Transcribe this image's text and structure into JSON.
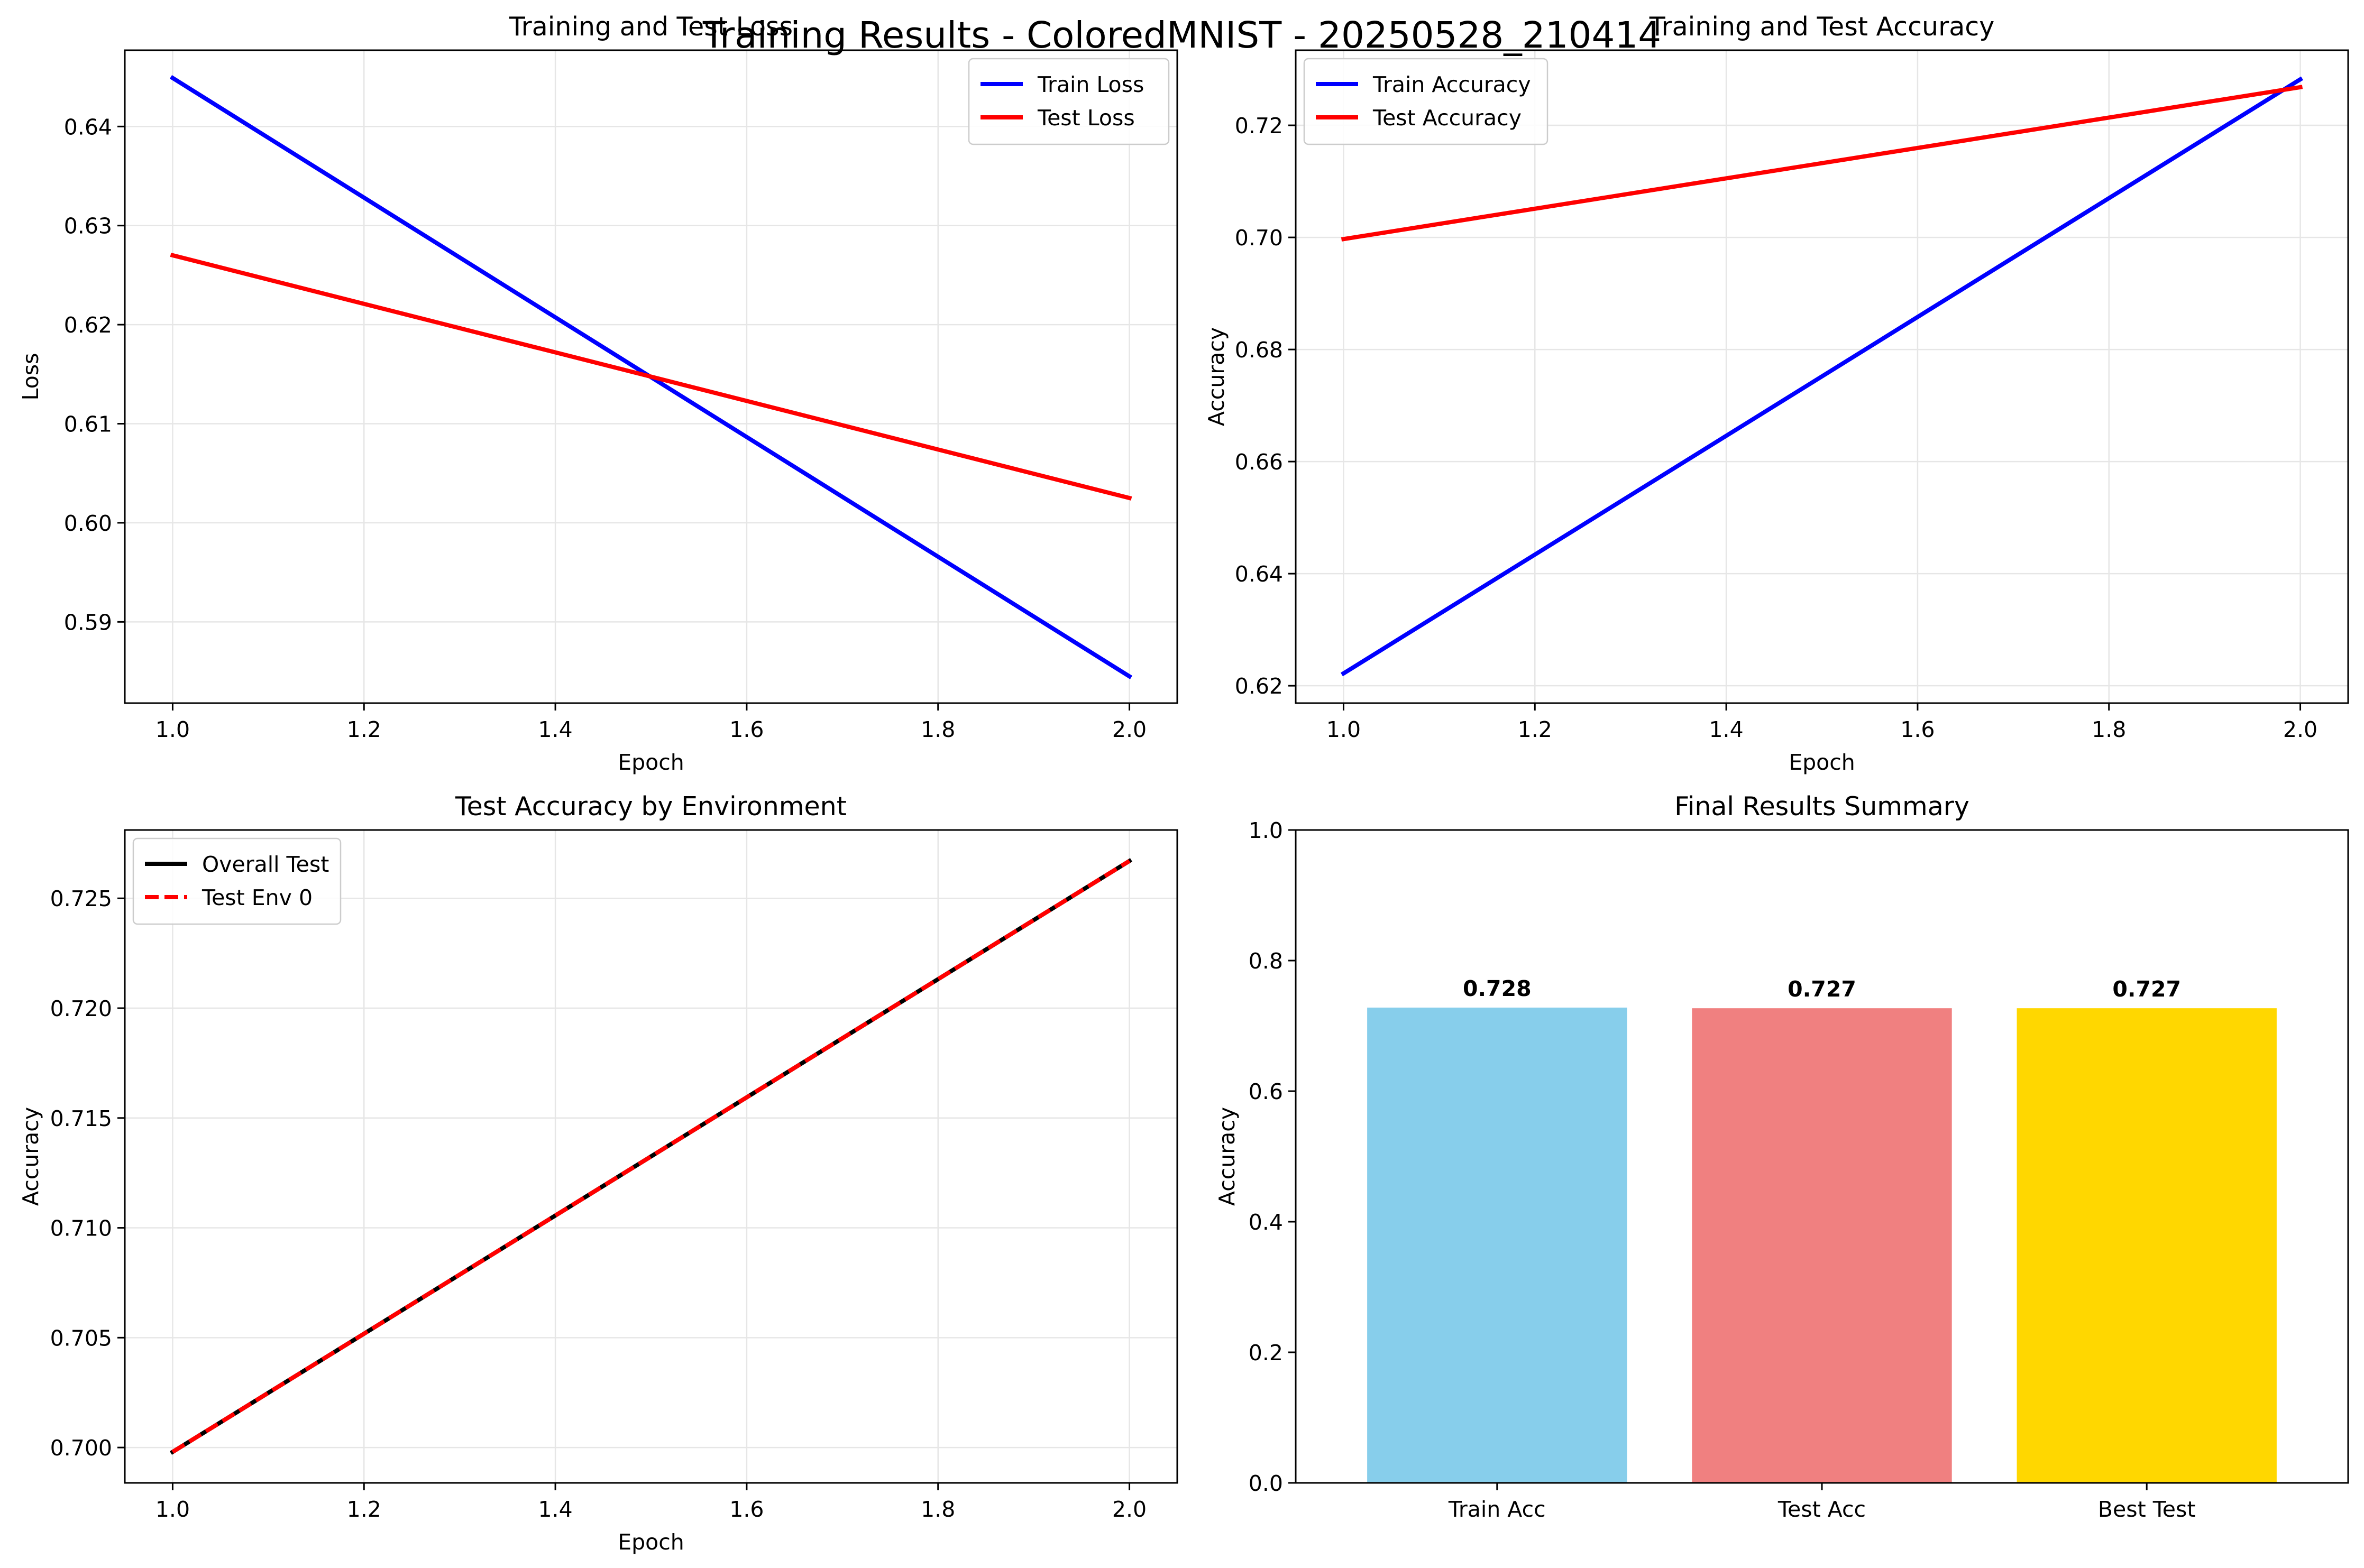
{
  "suptitle": "Training Results - ColoredMNIST - 20250528_210414",
  "colors": {
    "blue": "#0000ff",
    "red": "#ff0000",
    "black": "#000000",
    "grid": "#e6e6e6",
    "skyblue": "#87ceeb",
    "lightcoral": "#f08080",
    "gold": "#ffd700"
  },
  "chart_data": [
    {
      "type": "line",
      "title": "Training and Test Loss",
      "xlabel": "Epoch",
      "ylabel": "Loss",
      "xlim": [
        0.95,
        2.05
      ],
      "ylim": [
        0.5818,
        0.6477
      ],
      "xticks": [
        1.0,
        1.2,
        1.4,
        1.6,
        1.8,
        2.0
      ],
      "xtick_labels": [
        "1.0",
        "1.2",
        "1.4",
        "1.6",
        "1.8",
        "2.0"
      ],
      "yticks": [
        0.59,
        0.6,
        0.61,
        0.62,
        0.63,
        0.64
      ],
      "ytick_labels": [
        "0.59",
        "0.60",
        "0.61",
        "0.62",
        "0.63",
        "0.64"
      ],
      "grid": true,
      "legend_position": "upper right",
      "x": [
        1,
        2
      ],
      "series": [
        {
          "name": "Train Loss",
          "values": [
            0.6449,
            0.5845
          ],
          "color": "#0000ff",
          "style": "solid"
        },
        {
          "name": "Test Loss",
          "values": [
            0.627,
            0.6025
          ],
          "color": "#ff0000",
          "style": "solid"
        }
      ]
    },
    {
      "type": "line",
      "title": "Training and Test Accuracy",
      "xlabel": "Epoch",
      "ylabel": "Accuracy",
      "xlim": [
        0.95,
        2.05
      ],
      "ylim": [
        0.6169,
        0.7334
      ],
      "xticks": [
        1.0,
        1.2,
        1.4,
        1.6,
        1.8,
        2.0
      ],
      "xtick_labels": [
        "1.0",
        "1.2",
        "1.4",
        "1.6",
        "1.8",
        "2.0"
      ],
      "yticks": [
        0.62,
        0.64,
        0.66,
        0.68,
        0.7,
        0.72
      ],
      "ytick_labels": [
        "0.62",
        "0.64",
        "0.66",
        "0.68",
        "0.70",
        "0.72"
      ],
      "grid": true,
      "legend_position": "upper left",
      "x": [
        1,
        2
      ],
      "series": [
        {
          "name": "Train Accuracy",
          "values": [
            0.6222,
            0.7282
          ],
          "color": "#0000ff",
          "style": "solid"
        },
        {
          "name": "Test Accuracy",
          "values": [
            0.6997,
            0.7268
          ],
          "color": "#ff0000",
          "style": "solid"
        }
      ]
    },
    {
      "type": "line",
      "title": "Test Accuracy by Environment",
      "xlabel": "Epoch",
      "ylabel": "Accuracy",
      "xlim": [
        0.95,
        2.05
      ],
      "ylim": [
        0.69839,
        0.72811
      ],
      "xticks": [
        1.0,
        1.2,
        1.4,
        1.6,
        1.8,
        2.0
      ],
      "xtick_labels": [
        "1.0",
        "1.2",
        "1.4",
        "1.6",
        "1.8",
        "2.0"
      ],
      "yticks": [
        0.7,
        0.705,
        0.71,
        0.715,
        0.72,
        0.725
      ],
      "ytick_labels": [
        "0.700",
        "0.705",
        "0.710",
        "0.715",
        "0.720",
        "0.725"
      ],
      "grid": true,
      "legend_position": "upper left",
      "x": [
        1,
        2
      ],
      "series": [
        {
          "name": "Overall Test",
          "values": [
            0.6998,
            0.7267
          ],
          "color": "#000000",
          "style": "solid"
        },
        {
          "name": "Test Env 0",
          "values": [
            0.6998,
            0.7267
          ],
          "color": "#ff0000",
          "style": "dashed"
        }
      ]
    },
    {
      "type": "bar",
      "title": "Final Results Summary",
      "xlabel": "",
      "ylabel": "Accuracy",
      "ylim": [
        0,
        1.0
      ],
      "yticks": [
        0.0,
        0.2,
        0.4,
        0.6,
        0.8,
        1.0
      ],
      "ytick_labels": [
        "0.0",
        "0.2",
        "0.4",
        "0.6",
        "0.8",
        "1.0"
      ],
      "grid": false,
      "categories": [
        "Train Acc",
        "Test Acc",
        "Best Test"
      ],
      "values": [
        0.728,
        0.727,
        0.727
      ],
      "value_labels": [
        "0.728",
        "0.727",
        "0.727"
      ],
      "colors": [
        "#87ceeb",
        "#f08080",
        "#ffd700"
      ]
    }
  ]
}
